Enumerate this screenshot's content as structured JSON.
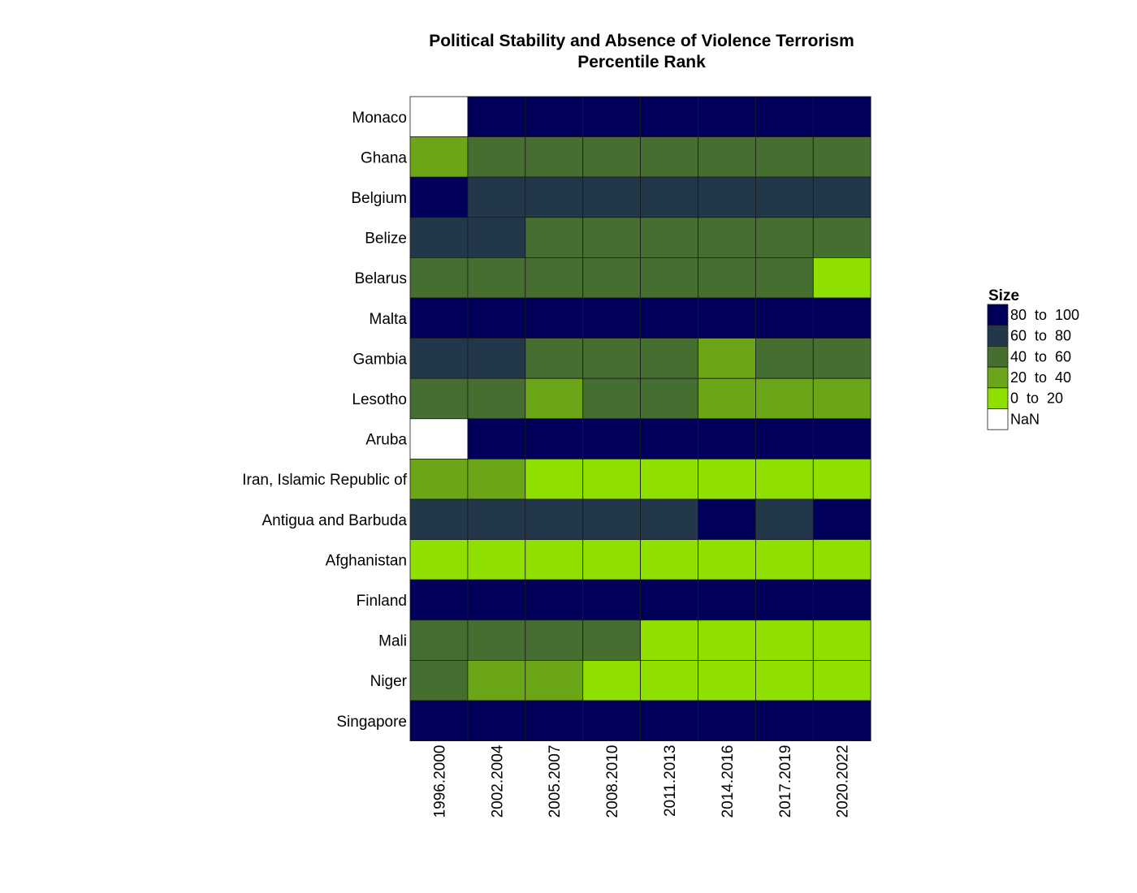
{
  "chart_data": {
    "type": "heatmap",
    "title": "Political Stability and Absence of Violence Terrorism",
    "subtitle": "Percentile Rank",
    "columns": [
      "1996.2000",
      "2002.2004",
      "2005.2007",
      "2008.2010",
      "2011.2013",
      "2014.2016",
      "2017.2019",
      "2020.2022"
    ],
    "rows": [
      {
        "name": "Monaco",
        "values": [
          "NaN",
          "80 to 100",
          "80 to 100",
          "80 to 100",
          "80 to 100",
          "80 to 100",
          "80 to 100",
          "80 to 100"
        ]
      },
      {
        "name": "Ghana",
        "values": [
          "20 to 40",
          "40 to 60",
          "40 to 60",
          "40 to 60",
          "40 to 60",
          "40 to 60",
          "40 to 60",
          "40 to 60"
        ]
      },
      {
        "name": "Belgium",
        "values": [
          "80 to 100",
          "60 to 80",
          "60 to 80",
          "60 to 80",
          "60 to 80",
          "60 to 80",
          "60 to 80",
          "60 to 80"
        ]
      },
      {
        "name": "Belize",
        "values": [
          "60 to 80",
          "60 to 80",
          "40 to 60",
          "40 to 60",
          "40 to 60",
          "40 to 60",
          "40 to 60",
          "40 to 60"
        ]
      },
      {
        "name": "Belarus",
        "values": [
          "40 to 60",
          "40 to 60",
          "40 to 60",
          "40 to 60",
          "40 to 60",
          "40 to 60",
          "40 to 60",
          "0 to 20"
        ]
      },
      {
        "name": "Malta",
        "values": [
          "80 to 100",
          "80 to 100",
          "80 to 100",
          "80 to 100",
          "80 to 100",
          "80 to 100",
          "80 to 100",
          "80 to 100"
        ]
      },
      {
        "name": "Gambia",
        "values": [
          "60 to 80",
          "60 to 80",
          "40 to 60",
          "40 to 60",
          "40 to 60",
          "20 to 40",
          "40 to 60",
          "40 to 60"
        ]
      },
      {
        "name": "Lesotho",
        "values": [
          "40 to 60",
          "40 to 60",
          "20 to 40",
          "40 to 60",
          "40 to 60",
          "20 to 40",
          "20 to 40",
          "20 to 40"
        ]
      },
      {
        "name": "Aruba",
        "values": [
          "NaN",
          "80 to 100",
          "80 to 100",
          "80 to 100",
          "80 to 100",
          "80 to 100",
          "80 to 100",
          "80 to 100"
        ]
      },
      {
        "name": "Iran, Islamic Republic of",
        "values": [
          "20 to 40",
          "20 to 40",
          "0 to 20",
          "0 to 20",
          "0 to 20",
          "0 to 20",
          "0 to 20",
          "0 to 20"
        ]
      },
      {
        "name": "Antigua and Barbuda",
        "values": [
          "60 to 80",
          "60 to 80",
          "60 to 80",
          "60 to 80",
          "60 to 80",
          "80 to 100",
          "60 to 80",
          "80 to 100"
        ]
      },
      {
        "name": "Afghanistan",
        "values": [
          "0 to 20",
          "0 to 20",
          "0 to 20",
          "0 to 20",
          "0 to 20",
          "0 to 20",
          "0 to 20",
          "0 to 20"
        ]
      },
      {
        "name": "Finland",
        "values": [
          "80 to 100",
          "80 to 100",
          "80 to 100",
          "80 to 100",
          "80 to 100",
          "80 to 100",
          "80 to 100",
          "80 to 100"
        ]
      },
      {
        "name": "Mali",
        "values": [
          "40 to 60",
          "40 to 60",
          "40 to 60",
          "40 to 60",
          "0 to 20",
          "0 to 20",
          "0 to 20",
          "0 to 20"
        ]
      },
      {
        "name": "Niger",
        "values": [
          "40 to 60",
          "20 to 40",
          "20 to 40",
          "0 to 20",
          "0 to 20",
          "0 to 20",
          "0 to 20",
          "0 to 20"
        ]
      },
      {
        "name": "Singapore",
        "values": [
          "80 to 100",
          "80 to 100",
          "80 to 100",
          "80 to 100",
          "80 to 100",
          "80 to 100",
          "80 to 100",
          "80 to 100"
        ]
      }
    ],
    "legend": {
      "title": "Size",
      "placement": "right",
      "items": [
        {
          "label": "80  to  100",
          "key": "80 to 100",
          "color": "#00005a"
        },
        {
          "label": "60  to  80",
          "key": "60 to 80",
          "color": "#23374a"
        },
        {
          "label": "40  to  60",
          "key": "40 to 60",
          "color": "#456e30"
        },
        {
          "label": "20  to  40",
          "key": "20 to 40",
          "color": "#6aa618"
        },
        {
          "label": "0  to  20",
          "key": "0 to 20",
          "color": "#8fe000"
        },
        {
          "label": "NaN",
          "key": "NaN",
          "color": "#ffffff"
        }
      ]
    }
  }
}
